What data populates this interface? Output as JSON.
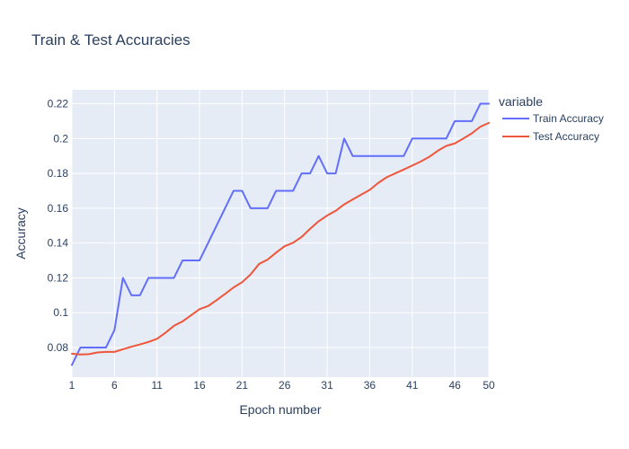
{
  "chart_data": {
    "type": "line",
    "title": "Train & Test Accuracies",
    "xlabel": "Epoch number",
    "ylabel": "Accuracy",
    "xlim": [
      1,
      50
    ],
    "ylim": [
      0.063,
      0.228
    ],
    "x_ticks": [
      1,
      6,
      11,
      16,
      21,
      26,
      31,
      36,
      41,
      46,
      50
    ],
    "x_tick_labels": [
      "1",
      "6",
      "11",
      "16",
      "21",
      "26",
      "31",
      "36",
      "41",
      "46",
      "50"
    ],
    "y_ticks": [
      0.08,
      0.1,
      0.12,
      0.14,
      0.16,
      0.18,
      0.2,
      0.22
    ],
    "y_tick_labels": [
      "0.08",
      "0.1",
      "0.12",
      "0.14",
      "0.16",
      "0.18",
      "0.2",
      "0.22"
    ],
    "grid": true,
    "plot_background": "#e5ecf6",
    "legend_title": "variable",
    "legend_position": "right",
    "x": [
      1,
      2,
      3,
      4,
      5,
      6,
      7,
      8,
      9,
      10,
      11,
      12,
      13,
      14,
      15,
      16,
      17,
      18,
      19,
      20,
      21,
      22,
      23,
      24,
      25,
      26,
      27,
      28,
      29,
      30,
      31,
      32,
      33,
      34,
      35,
      36,
      37,
      38,
      39,
      40,
      41,
      42,
      43,
      44,
      45,
      46,
      47,
      48,
      49,
      50
    ],
    "series": [
      {
        "name": "Train Accuracy",
        "color": "#636efa",
        "values": [
          0.07,
          0.08,
          0.08,
          0.08,
          0.08,
          0.09,
          0.12,
          0.11,
          0.11,
          0.12,
          0.12,
          0.12,
          0.12,
          0.13,
          0.13,
          0.13,
          0.14,
          0.15,
          0.16,
          0.17,
          0.17,
          0.16,
          0.16,
          0.16,
          0.17,
          0.17,
          0.17,
          0.18,
          0.18,
          0.19,
          0.18,
          0.18,
          0.2,
          0.19,
          0.19,
          0.19,
          0.19,
          0.19,
          0.19,
          0.19,
          0.2,
          0.2,
          0.2,
          0.2,
          0.2,
          0.21,
          0.21,
          0.21,
          0.22,
          0.22
        ]
      },
      {
        "name": "Test Accuracy",
        "color": "#ef553b",
        "values": [
          0.0765,
          0.076,
          0.0762,
          0.0772,
          0.0775,
          0.0775,
          0.079,
          0.0805,
          0.0818,
          0.0832,
          0.085,
          0.0885,
          0.0925,
          0.095,
          0.0985,
          0.102,
          0.1038,
          0.1072,
          0.1108,
          0.1145,
          0.1175,
          0.122,
          0.128,
          0.1305,
          0.1345,
          0.1382,
          0.1402,
          0.1435,
          0.1482,
          0.1525,
          0.1558,
          0.1585,
          0.1622,
          0.165,
          0.1678,
          0.1705,
          0.1745,
          0.1778,
          0.18,
          0.1822,
          0.1845,
          0.1868,
          0.1895,
          0.193,
          0.1958,
          0.1972,
          0.2,
          0.203,
          0.2068,
          0.209
        ]
      }
    ]
  }
}
